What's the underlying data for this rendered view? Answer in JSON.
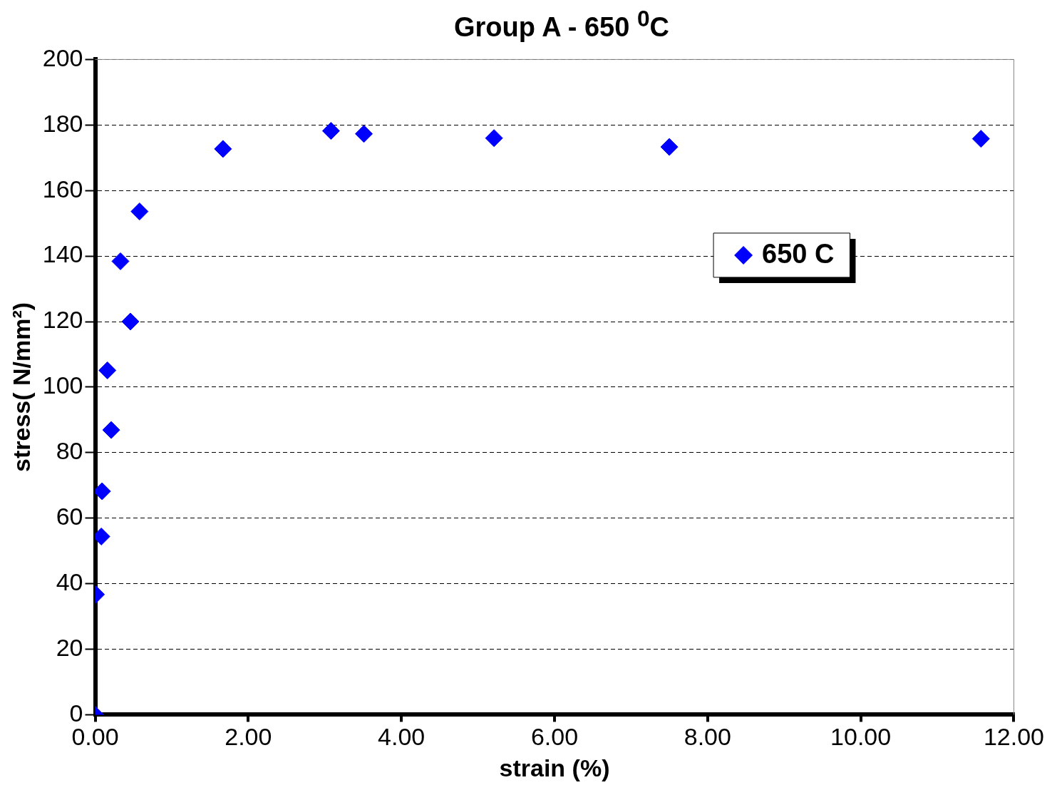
{
  "chart_data": {
    "type": "scatter",
    "title": "Group A - 650 $^{0}$C",
    "xlabel": "strain (%)",
    "ylabel": "stress( N/mm²)",
    "x": [
      0,
      0.01,
      0.08,
      0.09,
      0.21,
      0.16,
      0.46,
      0.33,
      0.58,
      1.67,
      3.08,
      3.51,
      5.21,
      7.5,
      11.57
    ],
    "series": [
      {
        "name": "650 C",
        "color": "#0000ff",
        "values": [
          0,
          36.7,
          54.4,
          68.2,
          86.9,
          105.1,
          120,
          138.4,
          153.6,
          172.7,
          178.2,
          177.3,
          176,
          173.3,
          175.8
        ]
      }
    ],
    "xlim": [
      0,
      12
    ],
    "xticks": [
      {
        "value": 0,
        "label": "0.00"
      },
      {
        "value": 2,
        "label": "2.00"
      },
      {
        "value": 4,
        "label": "4.00"
      },
      {
        "value": 6,
        "label": "6.00"
      },
      {
        "value": 8,
        "label": "8.00"
      },
      {
        "value": 10,
        "label": "10.00"
      },
      {
        "value": 12,
        "label": "12.00"
      }
    ],
    "ylim": [
      0,
      200
    ],
    "yticks": [
      0,
      20,
      40,
      60,
      80,
      100,
      120,
      140,
      160,
      180,
      200
    ],
    "grid": "y",
    "legend": "top right",
    "marker": "diamond"
  }
}
